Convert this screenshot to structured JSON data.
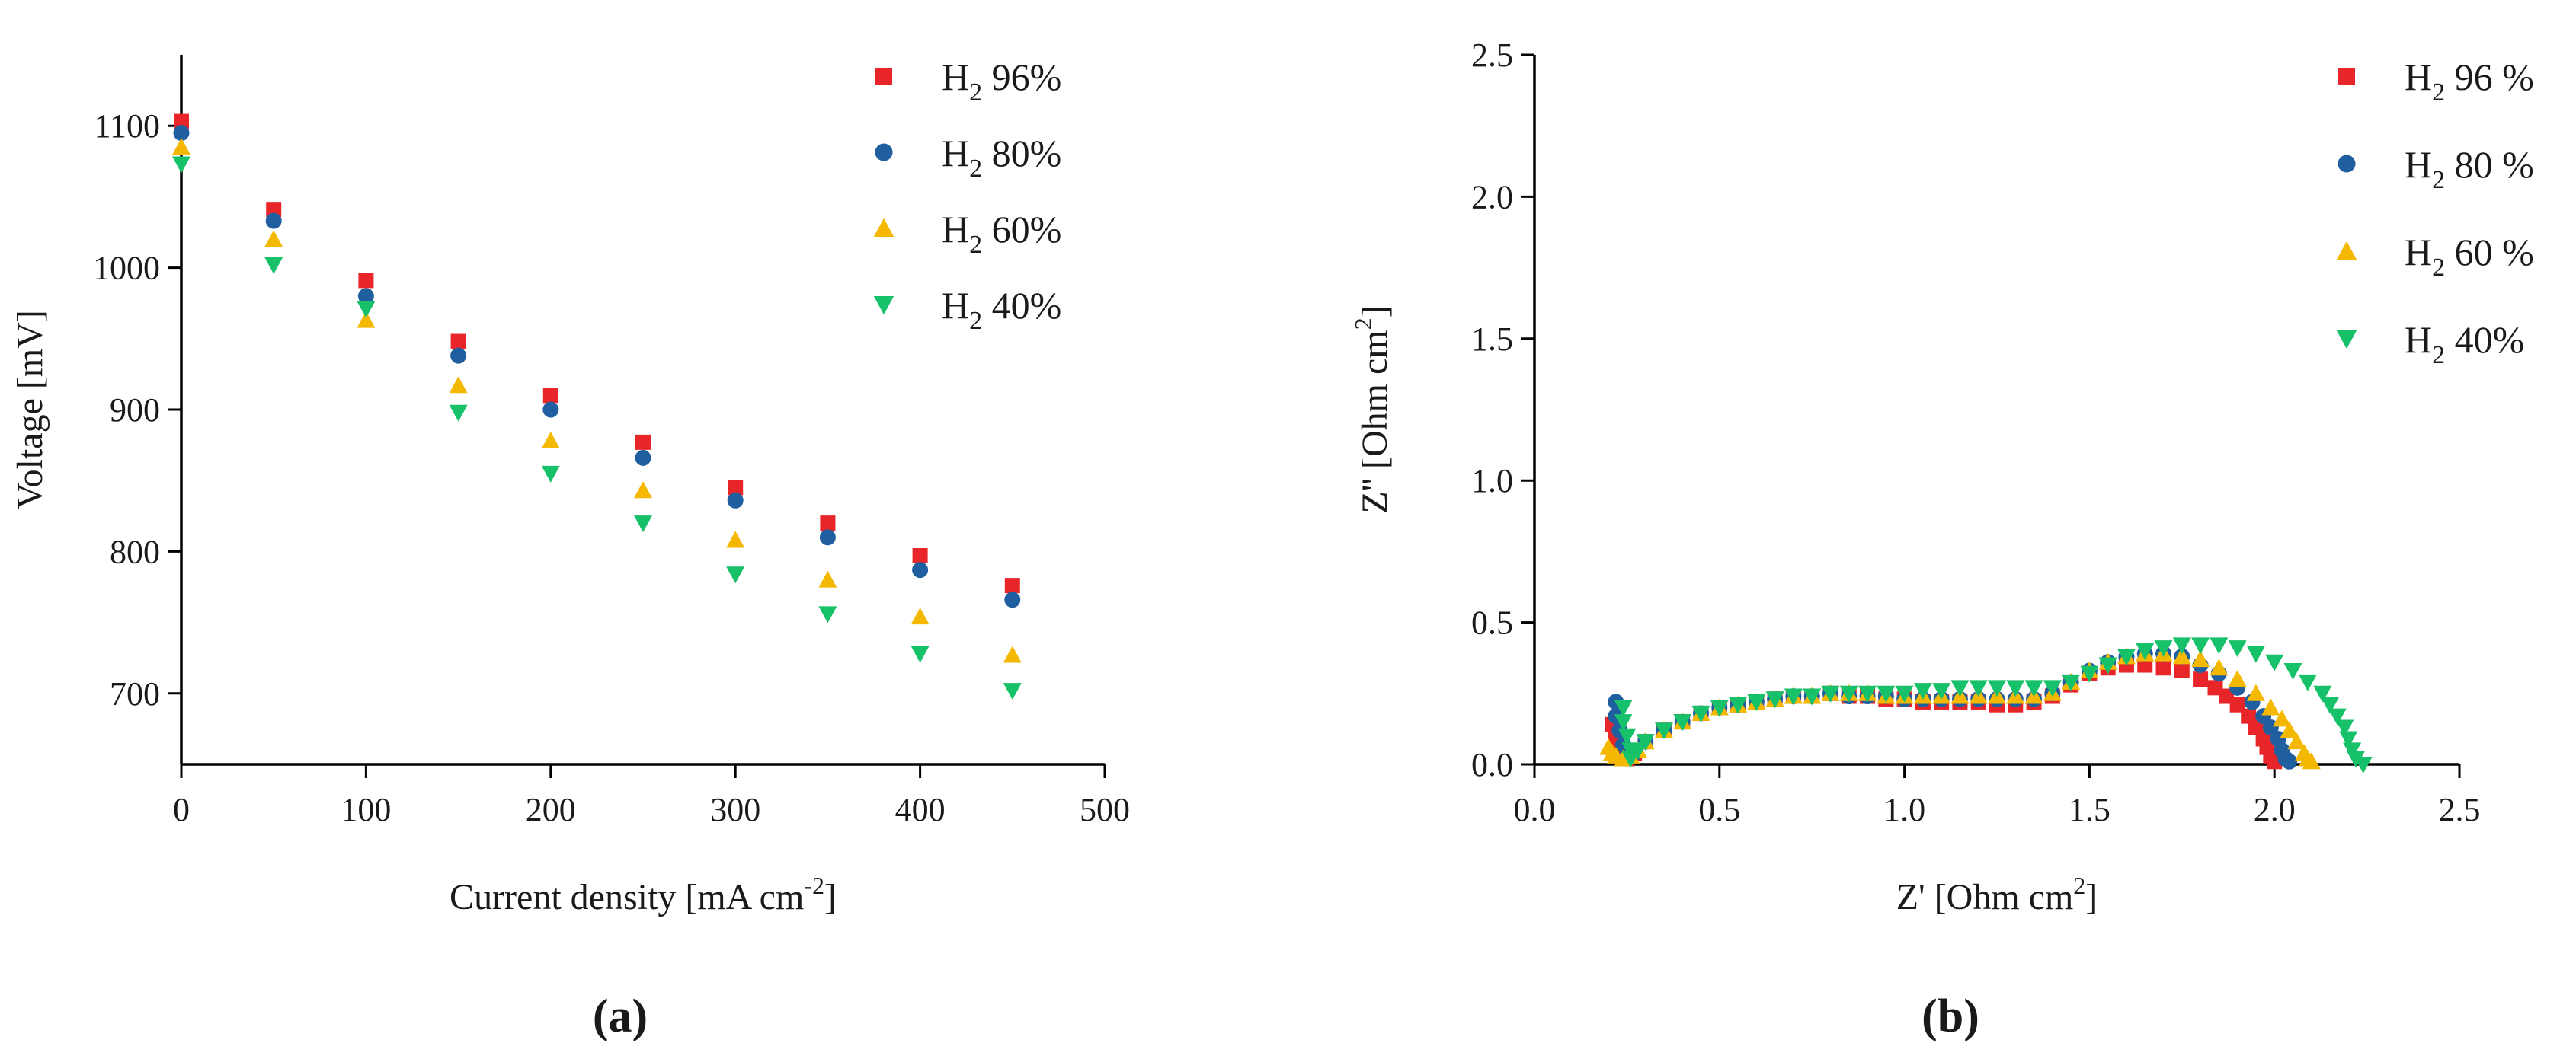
{
  "chart_data": [
    {
      "type": "scatter",
      "panel_label": "(a)",
      "title": "",
      "xlabel": "Current density [mA cm-2]",
      "xlabel_main": "Current density [mA cm",
      "xlabel_sup": "-2",
      "xlabel_end": "]",
      "ylabel": "Voltage [mV]",
      "xlim": [
        0,
        500
      ],
      "ylim": [
        650,
        1150
      ],
      "xticks": [
        0,
        100,
        200,
        300,
        400,
        500
      ],
      "yticks": [
        700,
        800,
        900,
        1000,
        1100
      ],
      "grid": false,
      "legend_position": "top-right",
      "x": [
        0,
        50,
        100,
        150,
        200,
        250,
        300,
        350,
        400,
        450
      ],
      "series": [
        {
          "name": "H2 96%",
          "label_main": "H",
          "label_sub": "2",
          "label_rest": " 96%",
          "marker": "square",
          "color": "#e8262a",
          "values": [
            1103,
            1041,
            991,
            948,
            910,
            877,
            845,
            820,
            797,
            776
          ]
        },
        {
          "name": "H2 80%",
          "label_main": "H",
          "label_sub": "2",
          "label_rest": " 80%",
          "marker": "circle",
          "color": "#1f5fa0",
          "values": [
            1095,
            1033,
            980,
            938,
            900,
            866,
            836,
            810,
            787,
            766
          ]
        },
        {
          "name": "H2 60%",
          "label_main": "H",
          "label_sub": "2",
          "label_rest": " 60%",
          "marker": "triangle-up",
          "color": "#f5b800",
          "values": [
            1085,
            1020,
            963,
            917,
            878,
            843,
            808,
            780,
            754,
            727
          ]
        },
        {
          "name": "H2 40%",
          "label_main": "H",
          "label_sub": "2",
          "label_rest": " 40%",
          "marker": "triangle-down",
          "color": "#17c16a",
          "values": [
            1073,
            1002,
            971,
            898,
            855,
            820,
            784,
            756,
            728,
            702
          ]
        }
      ]
    },
    {
      "type": "scatter",
      "panel_label": "(b)",
      "title": "",
      "xlabel": "Z' [Ohm cm2]",
      "xlabel_main": "Z' [Ohm cm",
      "xlabel_sup": "2",
      "xlabel_end": "]",
      "ylabel": "Z'' [Ohm cm2]",
      "ylabel_main": "Z'' [Ohm cm",
      "ylabel_sup": "2",
      "ylabel_end": "]",
      "xlim": [
        0,
        2.5
      ],
      "ylim": [
        0,
        2.5
      ],
      "xticks": [
        "0.0",
        "0.5",
        "1.0",
        "1.5",
        "2.0",
        "2.5"
      ],
      "yticks": [
        "0.0",
        "0.5",
        "1.0",
        "1.5",
        "2.0",
        "2.5"
      ],
      "grid": false,
      "legend_position": "top-right",
      "series": [
        {
          "name": "H2 96 %",
          "label_main": "H",
          "label_sub": "2",
          "label_rest": " 96 %",
          "marker": "square",
          "color": "#e8262a",
          "points": [
            [
              0.21,
              0.14
            ],
            [
              0.22,
              0.1
            ],
            [
              0.23,
              0.06
            ],
            [
              0.24,
              0.04
            ],
            [
              0.25,
              0.02
            ],
            [
              0.27,
              0.04
            ],
            [
              0.3,
              0.08
            ],
            [
              0.35,
              0.12
            ],
            [
              0.4,
              0.15
            ],
            [
              0.45,
              0.18
            ],
            [
              0.5,
              0.2
            ],
            [
              0.55,
              0.21
            ],
            [
              0.6,
              0.22
            ],
            [
              0.65,
              0.23
            ],
            [
              0.7,
              0.24
            ],
            [
              0.75,
              0.24
            ],
            [
              0.8,
              0.25
            ],
            [
              0.85,
              0.24
            ],
            [
              0.9,
              0.24
            ],
            [
              0.95,
              0.23
            ],
            [
              1.0,
              0.23
            ],
            [
              1.05,
              0.22
            ],
            [
              1.1,
              0.22
            ],
            [
              1.15,
              0.22
            ],
            [
              1.2,
              0.22
            ],
            [
              1.25,
              0.21
            ],
            [
              1.3,
              0.21
            ],
            [
              1.35,
              0.22
            ],
            [
              1.4,
              0.24
            ],
            [
              1.45,
              0.28
            ],
            [
              1.5,
              0.32
            ],
            [
              1.55,
              0.34
            ],
            [
              1.6,
              0.35
            ],
            [
              1.65,
              0.35
            ],
            [
              1.7,
              0.34
            ],
            [
              1.75,
              0.33
            ],
            [
              1.8,
              0.3
            ],
            [
              1.84,
              0.27
            ],
            [
              1.87,
              0.24
            ],
            [
              1.9,
              0.21
            ],
            [
              1.93,
              0.17
            ],
            [
              1.95,
              0.13
            ],
            [
              1.97,
              0.09
            ],
            [
              1.98,
              0.06
            ],
            [
              1.99,
              0.03
            ],
            [
              2.0,
              0.01
            ]
          ]
        },
        {
          "name": "H2 80 %",
          "label_main": "H",
          "label_sub": "2",
          "label_rest": " 80 %",
          "marker": "circle",
          "color": "#1f5fa0",
          "points": [
            [
              0.22,
              0.22
            ],
            [
              0.22,
              0.17
            ],
            [
              0.23,
              0.12
            ],
            [
              0.24,
              0.07
            ],
            [
              0.25,
              0.03
            ],
            [
              0.27,
              0.04
            ],
            [
              0.3,
              0.08
            ],
            [
              0.35,
              0.12
            ],
            [
              0.4,
              0.15
            ],
            [
              0.45,
              0.18
            ],
            [
              0.5,
              0.2
            ],
            [
              0.55,
              0.21
            ],
            [
              0.6,
              0.22
            ],
            [
              0.65,
              0.23
            ],
            [
              0.7,
              0.24
            ],
            [
              0.75,
              0.24
            ],
            [
              0.8,
              0.25
            ],
            [
              0.85,
              0.24
            ],
            [
              0.9,
              0.24
            ],
            [
              0.95,
              0.24
            ],
            [
              1.0,
              0.23
            ],
            [
              1.05,
              0.23
            ],
            [
              1.1,
              0.23
            ],
            [
              1.15,
              0.23
            ],
            [
              1.2,
              0.23
            ],
            [
              1.25,
              0.23
            ],
            [
              1.3,
              0.23
            ],
            [
              1.35,
              0.23
            ],
            [
              1.4,
              0.25
            ],
            [
              1.45,
              0.29
            ],
            [
              1.5,
              0.33
            ],
            [
              1.55,
              0.36
            ],
            [
              1.6,
              0.38
            ],
            [
              1.65,
              0.39
            ],
            [
              1.7,
              0.39
            ],
            [
              1.75,
              0.38
            ],
            [
              1.8,
              0.35
            ],
            [
              1.85,
              0.32
            ],
            [
              1.9,
              0.27
            ],
            [
              1.94,
              0.22
            ],
            [
              1.97,
              0.17
            ],
            [
              1.99,
              0.13
            ],
            [
              2.01,
              0.09
            ],
            [
              2.02,
              0.05
            ],
            [
              2.03,
              0.02
            ],
            [
              2.04,
              0.01
            ]
          ]
        },
        {
          "name": "H2 60 %",
          "label_main": "H",
          "label_sub": "2",
          "label_rest": " 60 %",
          "marker": "triangle-up",
          "color": "#f5b800",
          "points": [
            [
              0.2,
              0.06
            ],
            [
              0.21,
              0.04
            ],
            [
              0.22,
              0.03
            ],
            [
              0.24,
              0.02
            ],
            [
              0.26,
              0.03
            ],
            [
              0.28,
              0.05
            ],
            [
              0.3,
              0.08
            ],
            [
              0.35,
              0.12
            ],
            [
              0.4,
              0.15
            ],
            [
              0.45,
              0.18
            ],
            [
              0.5,
              0.2
            ],
            [
              0.55,
              0.21
            ],
            [
              0.6,
              0.22
            ],
            [
              0.65,
              0.23
            ],
            [
              0.7,
              0.24
            ],
            [
              0.75,
              0.24
            ],
            [
              0.8,
              0.25
            ],
            [
              0.85,
              0.25
            ],
            [
              0.9,
              0.25
            ],
            [
              0.95,
              0.24
            ],
            [
              1.0,
              0.24
            ],
            [
              1.05,
              0.24
            ],
            [
              1.1,
              0.24
            ],
            [
              1.15,
              0.24
            ],
            [
              1.2,
              0.24
            ],
            [
              1.25,
              0.24
            ],
            [
              1.3,
              0.24
            ],
            [
              1.35,
              0.24
            ],
            [
              1.4,
              0.25
            ],
            [
              1.45,
              0.29
            ],
            [
              1.5,
              0.33
            ],
            [
              1.55,
              0.36
            ],
            [
              1.6,
              0.38
            ],
            [
              1.65,
              0.39
            ],
            [
              1.7,
              0.39
            ],
            [
              1.75,
              0.38
            ],
            [
              1.8,
              0.37
            ],
            [
              1.85,
              0.34
            ],
            [
              1.9,
              0.3
            ],
            [
              1.95,
              0.25
            ],
            [
              1.99,
              0.2
            ],
            [
              2.02,
              0.16
            ],
            [
              2.04,
              0.12
            ],
            [
              2.06,
              0.08
            ],
            [
              2.08,
              0.04
            ],
            [
              2.09,
              0.02
            ],
            [
              2.1,
              0.01
            ]
          ]
        },
        {
          "name": "H2 40%",
          "label_main": "H",
          "label_sub": "2",
          "label_rest": " 40%",
          "marker": "triangle-down",
          "color": "#17c16a",
          "points": [
            [
              0.24,
              0.2
            ],
            [
              0.24,
              0.15
            ],
            [
              0.25,
              0.1
            ],
            [
              0.26,
              0.05
            ],
            [
              0.26,
              0.02
            ],
            [
              0.28,
              0.05
            ],
            [
              0.3,
              0.08
            ],
            [
              0.35,
              0.12
            ],
            [
              0.4,
              0.15
            ],
            [
              0.45,
              0.18
            ],
            [
              0.5,
              0.2
            ],
            [
              0.55,
              0.21
            ],
            [
              0.6,
              0.22
            ],
            [
              0.65,
              0.23
            ],
            [
              0.7,
              0.24
            ],
            [
              0.75,
              0.24
            ],
            [
              0.8,
              0.25
            ],
            [
              0.85,
              0.25
            ],
            [
              0.9,
              0.25
            ],
            [
              0.95,
              0.25
            ],
            [
              1.0,
              0.25
            ],
            [
              1.05,
              0.26
            ],
            [
              1.1,
              0.26
            ],
            [
              1.15,
              0.27
            ],
            [
              1.2,
              0.27
            ],
            [
              1.25,
              0.27
            ],
            [
              1.3,
              0.27
            ],
            [
              1.35,
              0.27
            ],
            [
              1.4,
              0.27
            ],
            [
              1.45,
              0.29
            ],
            [
              1.5,
              0.32
            ],
            [
              1.55,
              0.35
            ],
            [
              1.6,
              0.38
            ],
            [
              1.65,
              0.4
            ],
            [
              1.7,
              0.41
            ],
            [
              1.75,
              0.42
            ],
            [
              1.8,
              0.42
            ],
            [
              1.85,
              0.42
            ],
            [
              1.9,
              0.41
            ],
            [
              1.95,
              0.39
            ],
            [
              2.0,
              0.36
            ],
            [
              2.05,
              0.33
            ],
            [
              2.09,
              0.29
            ],
            [
              2.13,
              0.25
            ],
            [
              2.15,
              0.21
            ],
            [
              2.17,
              0.17
            ],
            [
              2.19,
              0.13
            ],
            [
              2.2,
              0.09
            ],
            [
              2.21,
              0.05
            ],
            [
              2.22,
              0.02
            ],
            [
              2.24,
              0.0
            ]
          ]
        }
      ]
    }
  ]
}
